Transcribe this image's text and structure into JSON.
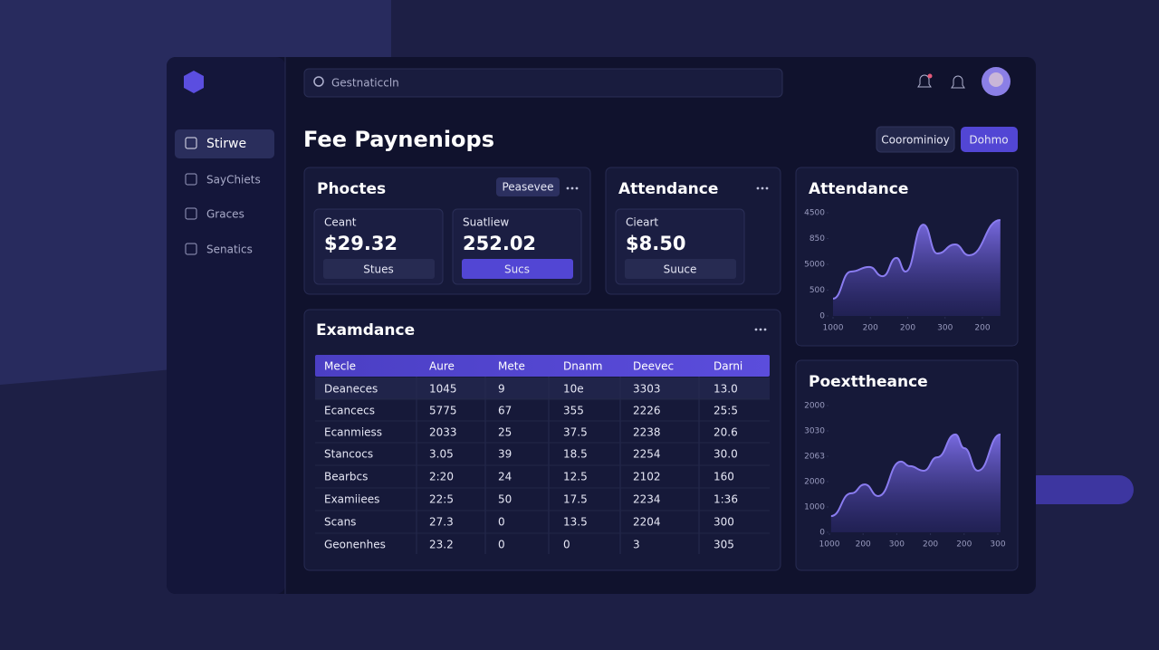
{
  "sidebar": {
    "nav": [
      "Stirwe",
      "SayChiets",
      "Graces",
      "Senatics"
    ]
  },
  "search": {
    "placeholder": "Gestnaticcln"
  },
  "header": {
    "title": "Fee Payneniops",
    "buttons": [
      "Coorominioy",
      "Dohmo"
    ]
  },
  "cards": [
    {
      "title": "Phoctes",
      "action": "Peasevee",
      "stats": [
        {
          "label": "Ceant",
          "value": "$29.32",
          "button": "Stues"
        },
        {
          "label": "Suatliew",
          "value": "252.02",
          "button": "Sucs"
        }
      ]
    },
    {
      "title": "Attendance",
      "stats": [
        {
          "label": "Cieart",
          "value": "$8.50",
          "button": "Suuce"
        }
      ]
    }
  ],
  "table": {
    "title": "Examdance",
    "columns": [
      "Mecle",
      "Aure",
      "Mete",
      "Dnanm",
      "Deevec",
      "Darni"
    ],
    "rows": [
      [
        "Deaneces",
        "1045",
        "9",
        "10e",
        "3303",
        "13.0"
      ],
      [
        "Ecancecs",
        "5775",
        "67",
        "355",
        "2226",
        "25:5"
      ],
      [
        "Ecanmiess",
        "2033",
        "25",
        "37.5",
        "2238",
        "20.6"
      ],
      [
        "Stancocs",
        "3.05",
        "39",
        "18.5",
        "2254",
        "30.0"
      ],
      [
        "Bearbcs",
        "2:20",
        "24",
        "12.5",
        "2102",
        "160"
      ],
      [
        "Examiiees",
        "22:5",
        "50",
        "17.5",
        "2234",
        "1:36"
      ],
      [
        "Scans",
        "27.3",
        "0",
        "13.5",
        "2204",
        "300"
      ],
      [
        "Geonenhes",
        "23.2",
        "0",
        "0",
        "3",
        "305"
      ]
    ]
  },
  "chart_data": [
    {
      "type": "area",
      "title": "Attendance",
      "color": "#8a7cf0",
      "x": [
        0,
        0.48,
        0.97,
        1.33,
        1.7,
        1.94,
        2.42,
        2.79,
        3.27,
        3.64,
        4.48
      ],
      "values": [
        0.67,
        1.72,
        1.9,
        1.54,
        2.25,
        1.72,
        3.54,
        2.42,
        2.77,
        2.35,
        3.72
      ],
      "xlim": [
        0,
        4.5
      ],
      "ylim": [
        0,
        4
      ],
      "xticks": [
        {
          "value": 0,
          "label": "1000"
        },
        {
          "value": 1,
          "label": "200"
        },
        {
          "value": 2,
          "label": "200"
        },
        {
          "value": 3,
          "label": "300"
        },
        {
          "value": 4,
          "label": "200"
        }
      ],
      "yticks": [
        {
          "value": 0,
          "label": "0"
        },
        {
          "value": 1,
          "label": "500"
        },
        {
          "value": 2,
          "label": "5000"
        },
        {
          "value": 3,
          "label": "850"
        },
        {
          "value": 4,
          "label": "4500"
        }
      ]
    },
    {
      "type": "area",
      "title": "Poexttheance",
      "color": "#8a7cf0",
      "x": [
        0.05,
        0.65,
        1.05,
        1.45,
        2.12,
        2.39,
        2.8,
        3.2,
        3.74,
        4.0,
        4.41,
        5.08
      ],
      "values": [
        0.64,
        1.54,
        1.89,
        1.43,
        2.79,
        2.61,
        2.43,
        2.96,
        3.86,
        3.32,
        2.43,
        3.86
      ],
      "xlim": [
        0,
        5.1
      ],
      "ylim": [
        0,
        5
      ],
      "xticks": [
        {
          "value": 0,
          "label": "1000"
        },
        {
          "value": 1,
          "label": "200"
        },
        {
          "value": 2,
          "label": "300"
        },
        {
          "value": 3,
          "label": "200"
        },
        {
          "value": 4,
          "label": "200"
        },
        {
          "value": 5,
          "label": "300"
        }
      ],
      "yticks": [
        {
          "value": 0,
          "label": "0"
        },
        {
          "value": 1,
          "label": "1000"
        },
        {
          "value": 2,
          "label": "2000"
        },
        {
          "value": 3,
          "label": "2063"
        },
        {
          "value": 4,
          "label": "3030"
        },
        {
          "value": 5,
          "label": "2000"
        }
      ]
    }
  ]
}
